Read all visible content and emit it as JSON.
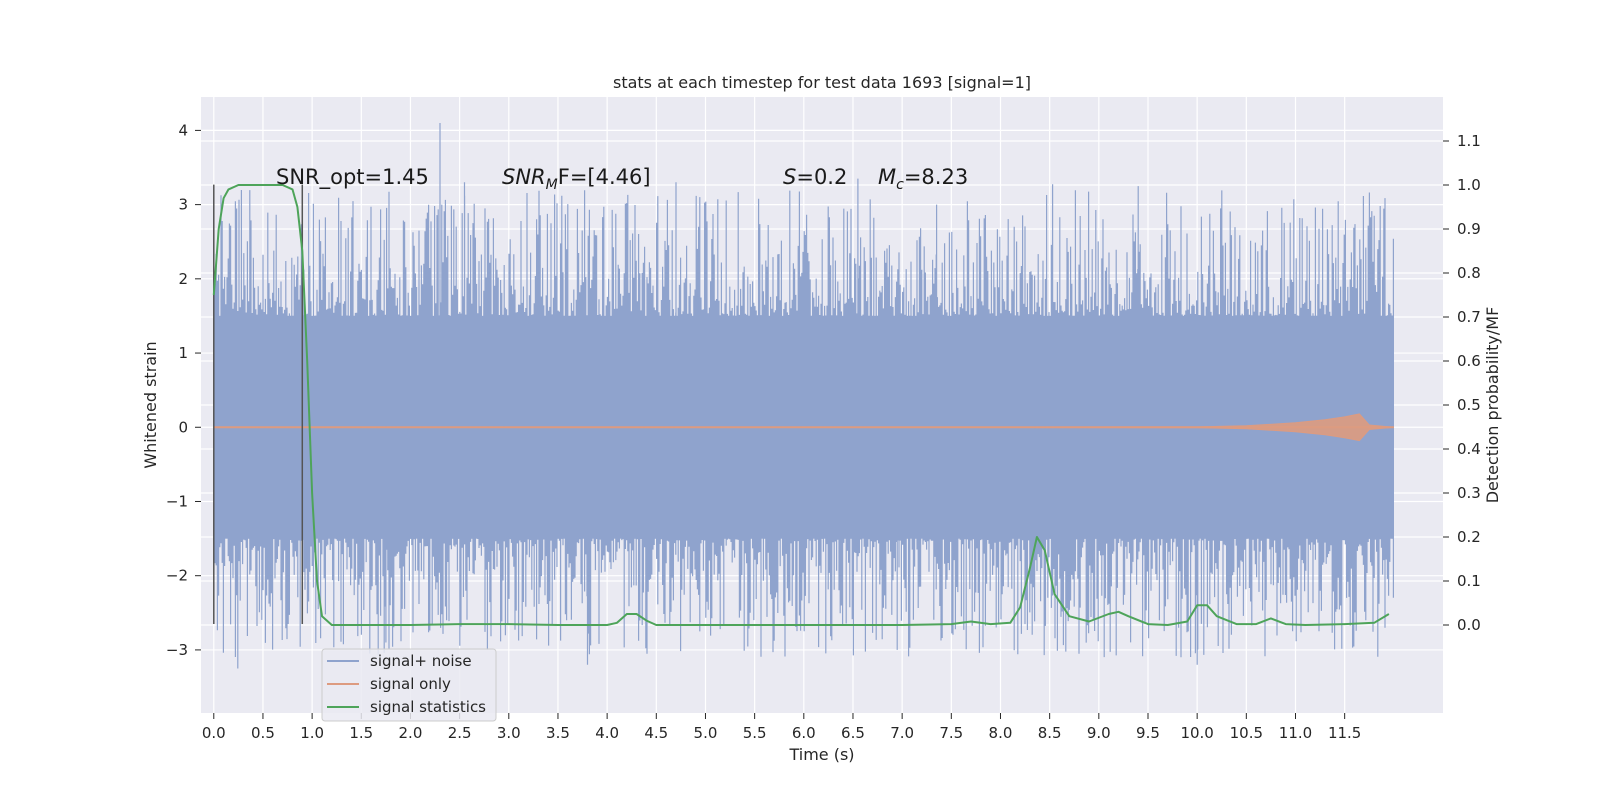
{
  "chart_data": {
    "type": "line",
    "title": "stats at each timestep for test data 1693 [signal=1]",
    "xlabel": "Time (s)",
    "ylabel_left": "Whitened strain",
    "ylabel_right": "Detection probability/MF",
    "xlim": [
      -0.13,
      12.5
    ],
    "ylim_left": [
      -3.85,
      4.45
    ],
    "ylim_right": [
      -0.2,
      1.2
    ],
    "x_ticks": [
      "0.0",
      "0.5",
      "1.0",
      "1.5",
      "2.0",
      "2.5",
      "3.0",
      "3.5",
      "4.0",
      "4.5",
      "5.0",
      "5.5",
      "6.0",
      "6.5",
      "7.0",
      "7.5",
      "8.0",
      "8.5",
      "9.0",
      "9.5",
      "10.0",
      "10.5",
      "11.0",
      "11.5"
    ],
    "x_tick_values": [
      0.0,
      0.5,
      1.0,
      1.5,
      2.0,
      2.5,
      3.0,
      3.5,
      4.0,
      4.5,
      5.0,
      5.5,
      6.0,
      6.5,
      7.0,
      7.5,
      8.0,
      8.5,
      9.0,
      9.5,
      10.0,
      10.5,
      11.0,
      11.5
    ],
    "y_left_ticks": [
      "−3",
      "−2",
      "−1",
      "0",
      "1",
      "2",
      "3",
      "4"
    ],
    "y_left_tick_values": [
      -3,
      -2,
      -1,
      0,
      1,
      2,
      3,
      4
    ],
    "y_right_ticks": [
      "0.0",
      "0.1",
      "0.2",
      "0.3",
      "0.4",
      "0.5",
      "0.6",
      "0.7",
      "0.8",
      "0.9",
      "1.0",
      "1.1"
    ],
    "y_right_tick_values": [
      0.0,
      0.1,
      0.2,
      0.3,
      0.4,
      0.5,
      0.6,
      0.7,
      0.8,
      0.9,
      1.0,
      1.1
    ],
    "grid": true,
    "legend_position": "lower-left",
    "series": [
      {
        "name": "signal+ noise",
        "axis": "left",
        "color": "#8fa3cd",
        "envelope": {
          "t_start": 0.0,
          "t_end": 12.0,
          "typical_abs": 1.5,
          "max": 4.1,
          "min": -3.25
        }
      },
      {
        "name": "signal only",
        "axis": "left",
        "color": "#dd9b80",
        "x": [
          0.0,
          10.0,
          10.5,
          11.0,
          11.3,
          11.5,
          11.65,
          11.75,
          12.0
        ],
        "amplitude": [
          0.0,
          0.005,
          0.02,
          0.06,
          0.1,
          0.14,
          0.18,
          0.03,
          0.0
        ]
      },
      {
        "name": "signal statistics",
        "axis": "right",
        "color": "#4ea45a",
        "x": [
          0.0,
          0.05,
          0.1,
          0.15,
          0.25,
          0.4,
          0.55,
          0.7,
          0.8,
          0.85,
          0.9,
          0.95,
          1.0,
          1.05,
          1.1,
          1.2,
          1.3,
          2.0,
          2.5,
          3.0,
          3.5,
          4.0,
          4.1,
          4.2,
          4.3,
          4.4,
          4.5,
          5.0,
          6.0,
          7.0,
          7.5,
          7.7,
          7.9,
          8.1,
          8.2,
          8.3,
          8.37,
          8.45,
          8.55,
          8.7,
          8.9,
          9.1,
          9.2,
          9.3,
          9.5,
          9.7,
          9.9,
          10.0,
          10.1,
          10.2,
          10.4,
          10.6,
          10.75,
          10.9,
          11.1,
          11.5,
          11.8,
          11.95
        ],
        "y": [
          0.75,
          0.9,
          0.97,
          0.99,
          1.0,
          1.0,
          1.0,
          1.0,
          0.99,
          0.95,
          0.85,
          0.6,
          0.3,
          0.1,
          0.02,
          0.0,
          0.0,
          0.0,
          0.002,
          0.002,
          0.0,
          0.0,
          0.005,
          0.025,
          0.025,
          0.01,
          0.0,
          0.0,
          0.0,
          0.0,
          0.002,
          0.008,
          0.002,
          0.005,
          0.04,
          0.13,
          0.2,
          0.17,
          0.07,
          0.02,
          0.008,
          0.025,
          0.03,
          0.02,
          0.002,
          0.0,
          0.008,
          0.045,
          0.045,
          0.02,
          0.002,
          0.002,
          0.015,
          0.002,
          0.0,
          0.002,
          0.005,
          0.025
        ]
      }
    ],
    "vertical_lines": [
      {
        "x": 0.0,
        "ymin": -2.65,
        "ymax": 3.27,
        "color": "#555555"
      },
      {
        "x": 0.9,
        "ymin": -2.65,
        "ymax": 3.27,
        "color": "#555555"
      }
    ],
    "annotations": [
      {
        "id": "snr-opt",
        "text": "SNR_opt=1.45",
        "italic": false
      },
      {
        "id": "snr-mf-label",
        "text": "SNR",
        "sub": "M",
        "rest": "F=[4.46]"
      },
      {
        "id": "s-value",
        "text": "S",
        "rest": "=0.2"
      },
      {
        "id": "mc-value",
        "text": "M",
        "sub": "c",
        "rest": "=8.23"
      }
    ]
  }
}
